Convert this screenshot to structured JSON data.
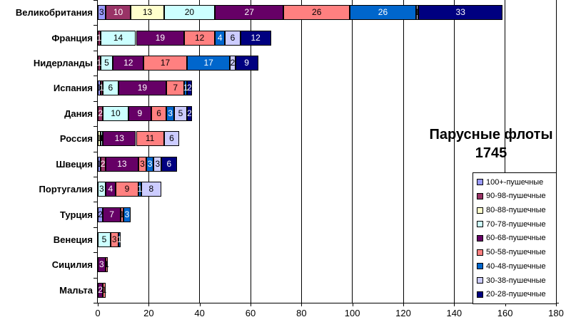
{
  "title": {
    "line1": "Парусные флоты",
    "line2": "1745"
  },
  "axis": {
    "x_tick_labels": [
      "0",
      "20",
      "40",
      "60",
      "80",
      "100",
      "120",
      "140",
      "160",
      "180"
    ],
    "x_max": 180
  },
  "legend": {
    "items": [
      {
        "label": "100+-пушечные",
        "color": "#9999FF"
      },
      {
        "label": "90-98-пушечные",
        "color": "#993366"
      },
      {
        "label": "80-88-пушечные",
        "color": "#FFFFCC"
      },
      {
        "label": "70-78-пушечные",
        "color": "#CCFFFF"
      },
      {
        "label": "60-68-пушечные",
        "color": "#660066"
      },
      {
        "label": "50-58-пушечные",
        "color": "#FF8080"
      },
      {
        "label": "40-48-пушечные",
        "color": "#0066CC"
      },
      {
        "label": "30-38-пушечные",
        "color": "#CCCCFF"
      },
      {
        "label": "20-28-пушечные",
        "color": "#000080"
      }
    ]
  },
  "chart_data": {
    "type": "bar",
    "stacked": true,
    "orientation": "horizontal",
    "title": "Парусные флоты 1745",
    "xlabel": "",
    "ylabel": "",
    "xlim": [
      0,
      180
    ],
    "grid": true,
    "legend_position": "lower-right",
    "categories": [
      "Великобритания",
      "Франция",
      "Нидерланды",
      "Испания",
      "Дания",
      "Россия",
      "Швеция",
      "Португалия",
      "Турция",
      "Венеция",
      "Сицилия",
      "Мальта"
    ],
    "series": [
      {
        "name": "100+-пушечные",
        "color": "#9999FF",
        "label_color": "#000000",
        "values": [
          3,
          0,
          0,
          1,
          0,
          0,
          1,
          0,
          2,
          0,
          0,
          0
        ]
      },
      {
        "name": "90-98-пушечные",
        "color": "#993366",
        "label_color": "#FFFFFF",
        "values": [
          10,
          1,
          1,
          1,
          2,
          0,
          2,
          0,
          0,
          0,
          0,
          0
        ]
      },
      {
        "name": "80-88-пушечные",
        "color": "#FFFFCC",
        "label_color": "#000000",
        "values": [
          13,
          0,
          0,
          0,
          0,
          1,
          0,
          0,
          0,
          0,
          0,
          0
        ]
      },
      {
        "name": "70-78-пушечные",
        "color": "#CCFFFF",
        "label_color": "#000000",
        "values": [
          20,
          14,
          5,
          6,
          10,
          1,
          0,
          3,
          0,
          5,
          0,
          0
        ]
      },
      {
        "name": "60-68-пушечные",
        "color": "#660066",
        "label_color": "#FFFFFF",
        "values": [
          27,
          19,
          12,
          19,
          9,
          13,
          13,
          4,
          7,
          0,
          3,
          2
        ]
      },
      {
        "name": "50-58-пушечные",
        "color": "#FF8080",
        "label_color": "#000000",
        "values": [
          26,
          12,
          17,
          7,
          6,
          11,
          3,
          9,
          1,
          3,
          1,
          1
        ]
      },
      {
        "name": "40-48-пушечные",
        "color": "#0066CC",
        "label_color": "#FFFFFF",
        "values": [
          26,
          4,
          17,
          1,
          3,
          0,
          3,
          1,
          3,
          1,
          0,
          0
        ]
      },
      {
        "name": "30-38-пушечные",
        "color": "#CCCCFF",
        "label_color": "#000000",
        "values": [
          1,
          6,
          2,
          0,
          5,
          6,
          3,
          8,
          0,
          0,
          0,
          0
        ]
      },
      {
        "name": "20-28-пушечные",
        "color": "#000080",
        "label_color": "#FFFFFF",
        "values": [
          33,
          12,
          9,
          2,
          2,
          0,
          6,
          0,
          0,
          0,
          0,
          0
        ]
      }
    ]
  }
}
